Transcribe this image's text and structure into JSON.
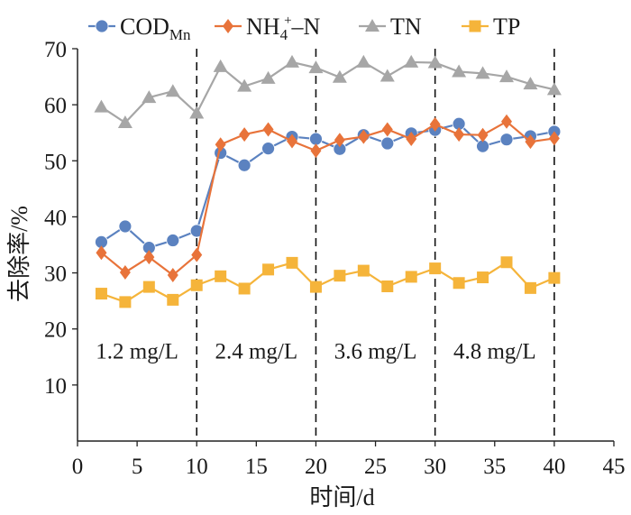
{
  "chart_data": {
    "type": "line",
    "title": "",
    "xlabel": "时间/d",
    "ylabel": "去除率/%",
    "xlim": [
      0,
      45
    ],
    "ylim": [
      0,
      70
    ],
    "x_ticks": [
      0,
      5,
      10,
      15,
      20,
      25,
      30,
      35,
      40,
      45
    ],
    "y_ticks": [
      10,
      20,
      30,
      40,
      50,
      60,
      70
    ],
    "x_tick_labels": [
      "0",
      "5",
      "10",
      "15",
      "20",
      "25",
      "30",
      "35",
      "40",
      "45"
    ],
    "y_tick_labels": [
      "10",
      "20",
      "30",
      "40",
      "50",
      "60",
      "70"
    ],
    "grid": false,
    "legend_position": "top",
    "x": [
      2,
      4,
      6,
      8,
      10,
      12,
      14,
      16,
      18,
      20,
      22,
      24,
      26,
      28,
      30,
      32,
      34,
      36,
      38,
      40
    ],
    "series": [
      {
        "name": "COD",
        "name_sub": "Mn",
        "color": "#5b82c0",
        "marker": "circle",
        "values": [
          35.5,
          38.3,
          34.5,
          35.8,
          37.5,
          51.4,
          49.2,
          52.2,
          54.3,
          53.9,
          52.1,
          54.6,
          53.1,
          54.9,
          55.5,
          56.6,
          52.6,
          53.8,
          54.4,
          55.2
        ]
      },
      {
        "name": "NH",
        "name_sub": "4",
        "name_sup": "+",
        "name_suffix": "–N",
        "color": "#e8733a",
        "marker": "diamond",
        "values": [
          33.6,
          30.1,
          32.8,
          29.6,
          33.2,
          52.9,
          54.7,
          55.6,
          53.5,
          51.8,
          53.7,
          54.3,
          55.6,
          53.9,
          56.5,
          54.7,
          54.6,
          57.0,
          53.4,
          54.0
        ]
      },
      {
        "name": "TN",
        "color": "#a6a6a6",
        "marker": "triangle",
        "values": [
          59.6,
          56.8,
          61.3,
          62.4,
          58.5,
          66.8,
          63.3,
          64.7,
          67.6,
          66.6,
          64.9,
          67.6,
          65.1,
          67.6,
          67.5,
          65.9,
          65.6,
          65.0,
          63.7,
          62.7
        ]
      },
      {
        "name": "TP",
        "color": "#f5b43a",
        "marker": "square",
        "values": [
          26.3,
          24.8,
          27.5,
          25.2,
          27.8,
          29.4,
          27.2,
          30.6,
          31.8,
          27.5,
          29.5,
          30.4,
          27.6,
          29.3,
          30.8,
          28.2,
          29.2,
          31.9,
          27.3,
          29.1
        ]
      }
    ],
    "phase_boundaries": [
      10,
      20,
      30,
      40
    ],
    "phase_labels": [
      {
        "text": "1.2 mg/L",
        "x": 5
      },
      {
        "text": "2.4 mg/L",
        "x": 15
      },
      {
        "text": "3.6 mg/L",
        "x": 25
      },
      {
        "text": "4.8 mg/L",
        "x": 35
      }
    ],
    "phase_label_y": 16
  }
}
